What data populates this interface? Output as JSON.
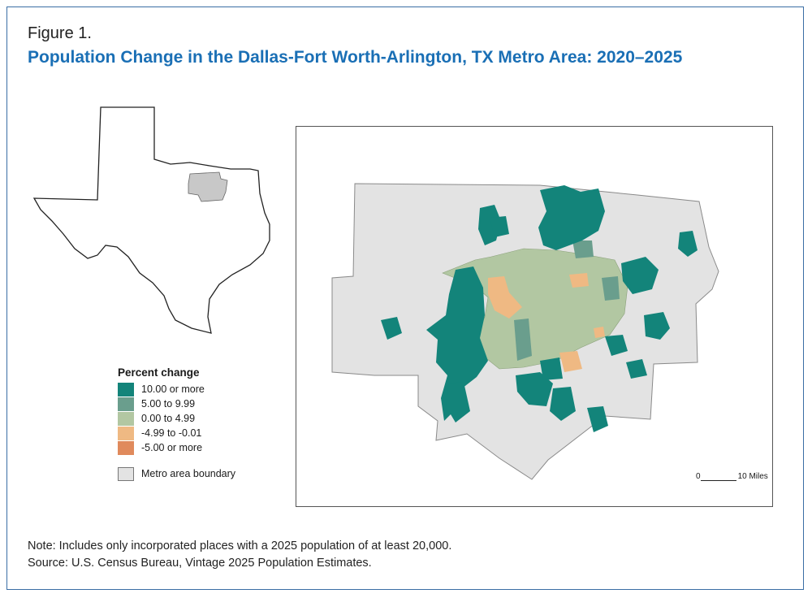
{
  "figure": {
    "label": "Figure 1.",
    "title": "Population Change in the Dallas-Fort Worth-Arlington, TX Metro Area: 2020–2025"
  },
  "legend": {
    "title": "Percent change",
    "items": [
      {
        "label": "10.00 or more",
        "color": "#13847a"
      },
      {
        "label": "5.00 to 9.99",
        "color": "#6a9e8d"
      },
      {
        "label": "0.00 to 4.99",
        "color": "#b2c7a2"
      },
      {
        "label": "-4.99 to -0.01",
        "color": "#efb983"
      },
      {
        "label": "-5.00 or more",
        "color": "#e08a5c"
      }
    ],
    "boundary_label": "Metro area boundary",
    "boundary_color": "#e3e3e3"
  },
  "scale": {
    "start": "0",
    "end": "10 Miles"
  },
  "notes": {
    "note": "Note: Includes only incorporated places with a 2025 population of at least 20,000.",
    "source": "Source: U.S. Census Bureau, Vintage 2025 Population Estimates."
  }
}
